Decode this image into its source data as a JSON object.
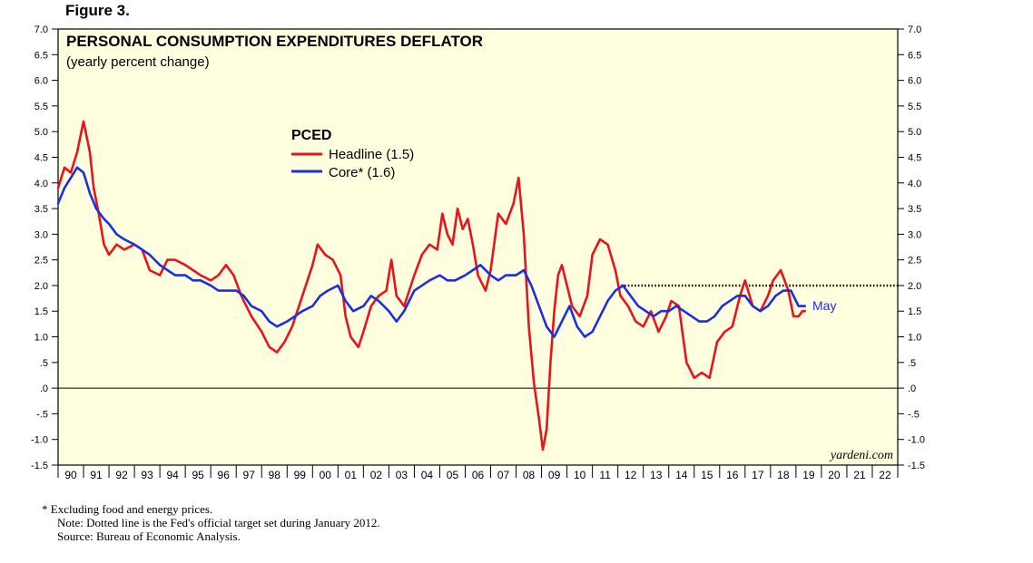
{
  "figure_label": "Figure 3.",
  "chart_data": {
    "type": "line",
    "title": "PERSONAL CONSUMPTION EXPENDITURES DEFLATOR",
    "subtitle": "(yearly percent change)",
    "legend_title": "PCED",
    "legend_placement": "upper-center",
    "ylim": [
      -1.5,
      7.0
    ],
    "y_ticks": [
      "7.0",
      "6.5",
      "6.0",
      "5.5",
      "5.0",
      "4.5",
      "4.0",
      "3.5",
      "3.0",
      "2.5",
      "2.0",
      "1.5",
      "1.0",
      ".5",
      ".0",
      "-.5",
      "-1.0",
      "-1.5"
    ],
    "x_ticks": [
      "90",
      "91",
      "92",
      "93",
      "94",
      "95",
      "96",
      "97",
      "98",
      "99",
      "00",
      "01",
      "02",
      "03",
      "04",
      "05",
      "06",
      "07",
      "08",
      "09",
      "10",
      "11",
      "12",
      "13",
      "14",
      "15",
      "16",
      "17",
      "18",
      "19",
      "20",
      "21",
      "22"
    ],
    "x_range": [
      1990,
      2023
    ],
    "zero_line": 0.0,
    "target_line": {
      "value": 2.0,
      "from": 2012.0,
      "style": "dotted"
    },
    "end_label": "May",
    "watermark": "yardeni.com",
    "colors": {
      "headline": "#e8141a",
      "core": "#1b2fe0",
      "plot_bg": "#ffffe0",
      "target": "#000000",
      "text": "#000000"
    },
    "series": [
      {
        "name": "Headline (1.5)",
        "x": [
          1990.0,
          1990.25,
          1990.5,
          1990.75,
          1991.0,
          1991.25,
          1991.4,
          1991.6,
          1991.8,
          1992.0,
          1992.3,
          1992.6,
          1993.0,
          1993.3,
          1993.6,
          1994.0,
          1994.3,
          1994.6,
          1995.0,
          1995.3,
          1995.6,
          1996.0,
          1996.3,
          1996.6,
          1996.9,
          1997.2,
          1997.6,
          1998.0,
          1998.3,
          1998.6,
          1998.9,
          1999.2,
          1999.6,
          2000.0,
          2000.2,
          2000.5,
          2000.8,
          2001.1,
          2001.3,
          2001.5,
          2001.8,
          2002.0,
          2002.3,
          2002.6,
          2002.9,
          2003.1,
          2003.3,
          2003.6,
          2004.0,
          2004.3,
          2004.6,
          2004.9,
          2005.1,
          2005.3,
          2005.5,
          2005.7,
          2005.9,
          2006.1,
          2006.3,
          2006.5,
          2006.8,
          2007.0,
          2007.3,
          2007.6,
          2007.9,
          2008.1,
          2008.3,
          2008.5,
          2008.7,
          2008.9,
          2009.05,
          2009.2,
          2009.35,
          2009.5,
          2009.65,
          2009.8,
          2010.0,
          2010.2,
          2010.5,
          2010.8,
          2011.0,
          2011.3,
          2011.6,
          2011.9,
          2012.1,
          2012.4,
          2012.7,
          2013.0,
          2013.3,
          2013.6,
          2013.9,
          2014.1,
          2014.4,
          2014.7,
          2015.0,
          2015.3,
          2015.6,
          2015.9,
          2016.2,
          2016.5,
          2016.8,
          2017.0,
          2017.3,
          2017.6,
          2017.9,
          2018.1,
          2018.4,
          2018.7,
          2018.9,
          2019.1,
          2019.25,
          2019.35
        ],
        "values": [
          3.9,
          4.3,
          4.2,
          4.6,
          5.2,
          4.6,
          3.9,
          3.4,
          2.8,
          2.6,
          2.8,
          2.7,
          2.8,
          2.7,
          2.3,
          2.2,
          2.5,
          2.5,
          2.4,
          2.3,
          2.2,
          2.1,
          2.2,
          2.4,
          2.2,
          1.8,
          1.4,
          1.1,
          0.8,
          0.7,
          0.9,
          1.2,
          1.8,
          2.4,
          2.8,
          2.6,
          2.5,
          2.2,
          1.4,
          1.0,
          0.8,
          1.1,
          1.6,
          1.8,
          1.9,
          2.5,
          1.8,
          1.6,
          2.2,
          2.6,
          2.8,
          2.7,
          3.4,
          3.0,
          2.8,
          3.5,
          3.1,
          3.3,
          2.8,
          2.2,
          1.9,
          2.3,
          3.4,
          3.2,
          3.6,
          4.1,
          3.0,
          1.2,
          0.1,
          -0.6,
          -1.2,
          -0.8,
          0.5,
          1.5,
          2.2,
          2.4,
          2.0,
          1.6,
          1.4,
          1.8,
          2.6,
          2.9,
          2.8,
          2.3,
          1.8,
          1.6,
          1.3,
          1.2,
          1.5,
          1.1,
          1.4,
          1.7,
          1.6,
          0.5,
          0.2,
          0.3,
          0.2,
          0.9,
          1.1,
          1.2,
          1.8,
          2.1,
          1.6,
          1.5,
          1.8,
          2.1,
          2.3,
          1.9,
          1.4,
          1.4,
          1.5,
          1.5
        ]
      },
      {
        "name": "Core* (1.6)",
        "x": [
          1990.0,
          1990.25,
          1990.5,
          1990.75,
          1991.0,
          1991.25,
          1991.5,
          1991.8,
          1992.0,
          1992.3,
          1992.6,
          1993.0,
          1993.3,
          1993.6,
          1994.0,
          1994.3,
          1994.6,
          1995.0,
          1995.3,
          1995.6,
          1996.0,
          1996.3,
          1996.6,
          1997.0,
          1997.3,
          1997.6,
          1998.0,
          1998.3,
          1998.6,
          1999.0,
          1999.3,
          1999.6,
          2000.0,
          2000.3,
          2000.6,
          2001.0,
          2001.3,
          2001.6,
          2002.0,
          2002.3,
          2002.6,
          2003.0,
          2003.3,
          2003.6,
          2004.0,
          2004.3,
          2004.6,
          2005.0,
          2005.3,
          2005.6,
          2006.0,
          2006.3,
          2006.6,
          2007.0,
          2007.3,
          2007.6,
          2008.0,
          2008.3,
          2008.6,
          2008.9,
          2009.2,
          2009.5,
          2009.8,
          2010.1,
          2010.4,
          2010.7,
          2011.0,
          2011.3,
          2011.6,
          2011.9,
          2012.2,
          2012.5,
          2012.8,
          2013.1,
          2013.4,
          2013.7,
          2014.0,
          2014.3,
          2014.6,
          2014.9,
          2015.2,
          2015.5,
          2015.8,
          2016.1,
          2016.4,
          2016.7,
          2017.0,
          2017.3,
          2017.6,
          2017.9,
          2018.2,
          2018.5,
          2018.8,
          2019.1,
          2019.35
        ],
        "values": [
          3.6,
          3.9,
          4.1,
          4.3,
          4.2,
          3.8,
          3.5,
          3.3,
          3.2,
          3.0,
          2.9,
          2.8,
          2.7,
          2.6,
          2.4,
          2.3,
          2.2,
          2.2,
          2.1,
          2.1,
          2.0,
          1.9,
          1.9,
          1.9,
          1.8,
          1.6,
          1.5,
          1.3,
          1.2,
          1.3,
          1.4,
          1.5,
          1.6,
          1.8,
          1.9,
          2.0,
          1.7,
          1.5,
          1.6,
          1.8,
          1.7,
          1.5,
          1.3,
          1.5,
          1.9,
          2.0,
          2.1,
          2.2,
          2.1,
          2.1,
          2.2,
          2.3,
          2.4,
          2.2,
          2.1,
          2.2,
          2.2,
          2.3,
          2.0,
          1.6,
          1.2,
          1.0,
          1.3,
          1.6,
          1.2,
          1.0,
          1.1,
          1.4,
          1.7,
          1.9,
          2.0,
          1.8,
          1.6,
          1.5,
          1.4,
          1.5,
          1.5,
          1.6,
          1.5,
          1.4,
          1.3,
          1.3,
          1.4,
          1.6,
          1.7,
          1.8,
          1.8,
          1.6,
          1.5,
          1.6,
          1.8,
          1.9,
          1.9,
          1.6,
          1.6
        ]
      }
    ]
  },
  "footnotes": [
    "*   Excluding food and energy prices.",
    "Note: Dotted line is the Fed's official target set during January 2012.",
    "Source: Bureau of Economic Analysis."
  ]
}
